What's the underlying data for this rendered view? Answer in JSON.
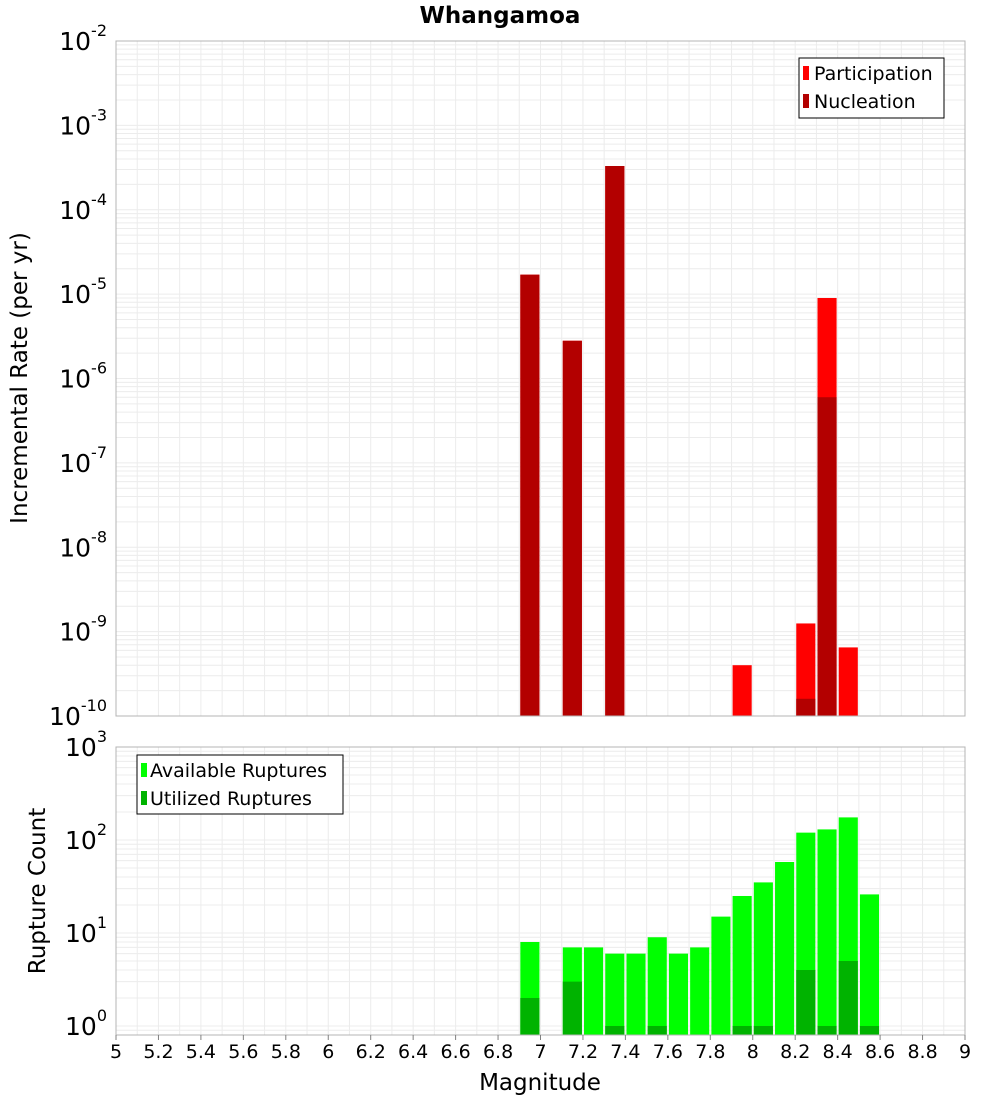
{
  "title": "Whangamoa",
  "xlabel": "Magnitude",
  "colors": {
    "participation": "#ff0000",
    "nucleation": "#b30000",
    "available": "#00ff00",
    "utilized": "#00b300",
    "grid": "#ececec",
    "frame": "#b4b4b4"
  },
  "chart_data": [
    {
      "type": "bar",
      "name": "rate-panel",
      "ylabel": "Incremental Rate (per yr)",
      "yscale": "log",
      "xlim": [
        5,
        9
      ],
      "ylim": [
        1e-10,
        0.01
      ],
      "bar_width": 0.09,
      "grid": true,
      "legend_position": "top-right",
      "y_ticks": [
        {
          "base": "10",
          "exp": "-2",
          "value": 0.01
        },
        {
          "base": "10",
          "exp": "-3",
          "value": 0.001
        },
        {
          "base": "10",
          "exp": "-4",
          "value": 0.0001
        },
        {
          "base": "10",
          "exp": "-5",
          "value": 1e-05
        },
        {
          "base": "10",
          "exp": "-6",
          "value": 1e-06
        },
        {
          "base": "10",
          "exp": "-7",
          "value": 1e-07
        },
        {
          "base": "10",
          "exp": "-8",
          "value": 1e-08
        },
        {
          "base": "10",
          "exp": "-9",
          "value": 1e-09
        },
        {
          "base": "10",
          "exp": "-10",
          "value": 1e-10
        }
      ],
      "series": [
        {
          "name": "Participation",
          "x": [
            6.95,
            7.15,
            7.35,
            7.95,
            8.25,
            8.35,
            8.45
          ],
          "values": [
            1.7e-05,
            2.8e-06,
            0.00033,
            4e-10,
            1.25e-09,
            9e-06,
            6.5e-10
          ]
        },
        {
          "name": "Nucleation",
          "x": [
            6.95,
            7.15,
            7.35,
            8.25,
            8.35
          ],
          "values": [
            1.7e-05,
            2.8e-06,
            0.00033,
            1.6e-10,
            6e-07
          ]
        }
      ]
    },
    {
      "type": "bar",
      "name": "count-panel",
      "ylabel": "Rupture Count",
      "yscale": "log",
      "xlim": [
        5,
        9
      ],
      "ylim": [
        0.8,
        1000
      ],
      "bar_width": 0.09,
      "grid": true,
      "legend_position": "top-left",
      "y_ticks": [
        {
          "base": "10",
          "exp": "3",
          "value": 1000
        },
        {
          "base": "10",
          "exp": "2",
          "value": 100
        },
        {
          "base": "10",
          "exp": "1",
          "value": 10
        },
        {
          "base": "10",
          "exp": "0",
          "value": 1
        }
      ],
      "series": [
        {
          "name": "Available Ruptures",
          "x": [
            6.95,
            7.15,
            7.25,
            7.35,
            7.45,
            7.55,
            7.65,
            7.75,
            7.85,
            7.95,
            8.05,
            8.15,
            8.25,
            8.35,
            8.45,
            8.55
          ],
          "values": [
            8,
            7,
            7,
            6,
            6,
            9,
            6,
            7,
            15,
            25,
            35,
            58,
            120,
            130,
            175,
            26
          ]
        },
        {
          "name": "Utilized Ruptures",
          "x": [
            6.95,
            7.15,
            7.35,
            7.55,
            7.95,
            8.05,
            8.25,
            8.35,
            8.45,
            8.55
          ],
          "values": [
            2,
            3,
            1,
            1,
            1,
            1,
            4,
            1,
            5,
            1
          ]
        }
      ]
    }
  ],
  "x_ticks": [
    "5",
    "5.2",
    "5.4",
    "5.6",
    "5.8",
    "6",
    "6.2",
    "6.4",
    "6.6",
    "6.8",
    "7",
    "7.2",
    "7.4",
    "7.6",
    "7.8",
    "8",
    "8.2",
    "8.4",
    "8.6",
    "8.8",
    "9"
  ]
}
